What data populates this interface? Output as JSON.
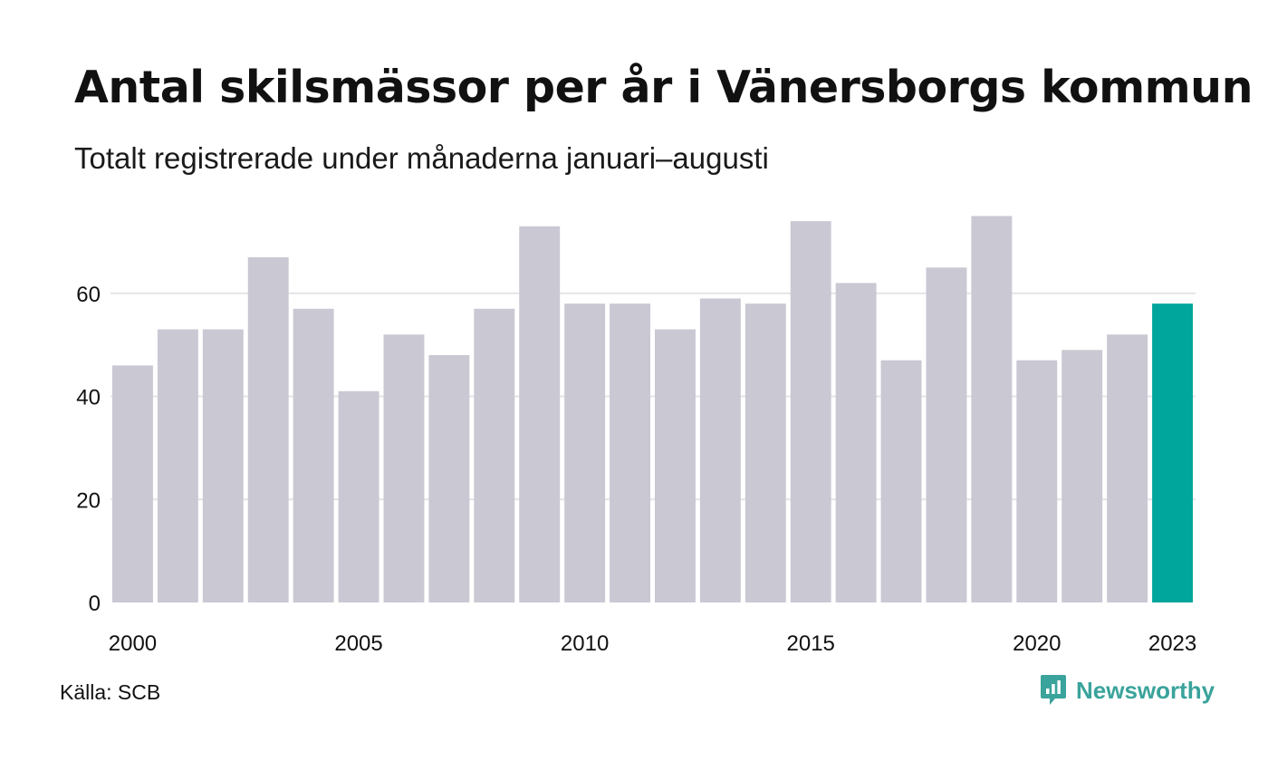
{
  "header": {
    "title": "Antal skilsmässor per år i Vänersborgs kommun",
    "subtitle": "Totalt registrerade under månaderna januari–augusti"
  },
  "footer": {
    "source": "Källa: SCB",
    "brand": "Newsworthy",
    "brand_icon": "newsworthy-logo-icon"
  },
  "colors": {
    "bar": "#c9c8d3",
    "highlight": "#00a59b",
    "grid": "#e4e4e8",
    "text": "#111111",
    "brand": "#3aa39b"
  },
  "chart_data": {
    "type": "bar",
    "title": "Antal skilsmässor per år i Vänersborgs kommun",
    "subtitle": "Totalt registrerade under månaderna januari–augusti",
    "xlabel": "",
    "ylabel": "",
    "categories": [
      "2000",
      "2001",
      "2002",
      "2003",
      "2004",
      "2005",
      "2006",
      "2007",
      "2008",
      "2009",
      "2010",
      "2011",
      "2012",
      "2013",
      "2014",
      "2015",
      "2016",
      "2017",
      "2018",
      "2019",
      "2020",
      "2021",
      "2022",
      "2023"
    ],
    "values": [
      46,
      53,
      53,
      67,
      57,
      41,
      52,
      48,
      57,
      73,
      58,
      58,
      53,
      59,
      58,
      74,
      62,
      47,
      65,
      75,
      47,
      49,
      52,
      58
    ],
    "highlight_category": "2023",
    "x_tick_labels": [
      "2000",
      "2005",
      "2010",
      "2015",
      "2020",
      "2023"
    ],
    "y_ticks": [
      0,
      20,
      40,
      60
    ],
    "ylim": [
      0,
      80
    ],
    "grid": "horizontal",
    "legend": "none"
  }
}
